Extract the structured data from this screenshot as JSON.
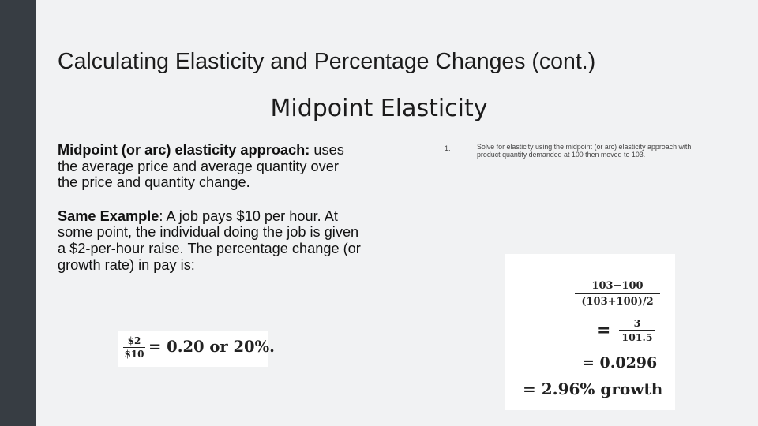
{
  "slide": {
    "title": "Calculating Elasticity and Percentage Changes (cont.)",
    "subtitle": "Midpoint Elasticity"
  },
  "left": {
    "para1_bold": "Midpoint (or arc) elasticity approach:",
    "para1_rest": " uses the average price and average quantity over the price and quantity change.",
    "para2_bold": "Same Example",
    "para2_rest": ": A job pays $10 per hour. At some point, the individual doing the job is given a $2-per-hour raise. The percentage change (or growth rate) in pay is:"
  },
  "formula_small": {
    "numerator": "$2",
    "denominator": "$10",
    "result": "= 0.20 or 20%."
  },
  "right": {
    "step_number": "1.",
    "step_text": "Solve for elasticity using the midpoint (or arc) elasticity approach with product quantity demanded at 100 then moved to 103."
  },
  "calculation": {
    "frac1_numerator": "103−100",
    "frac1_denominator": "(103+100)/2",
    "equals": "=",
    "frac2_numerator": "3",
    "frac2_denominator": "101.5",
    "line3": "= 0.0296",
    "line4": "= 2.96% growth"
  }
}
